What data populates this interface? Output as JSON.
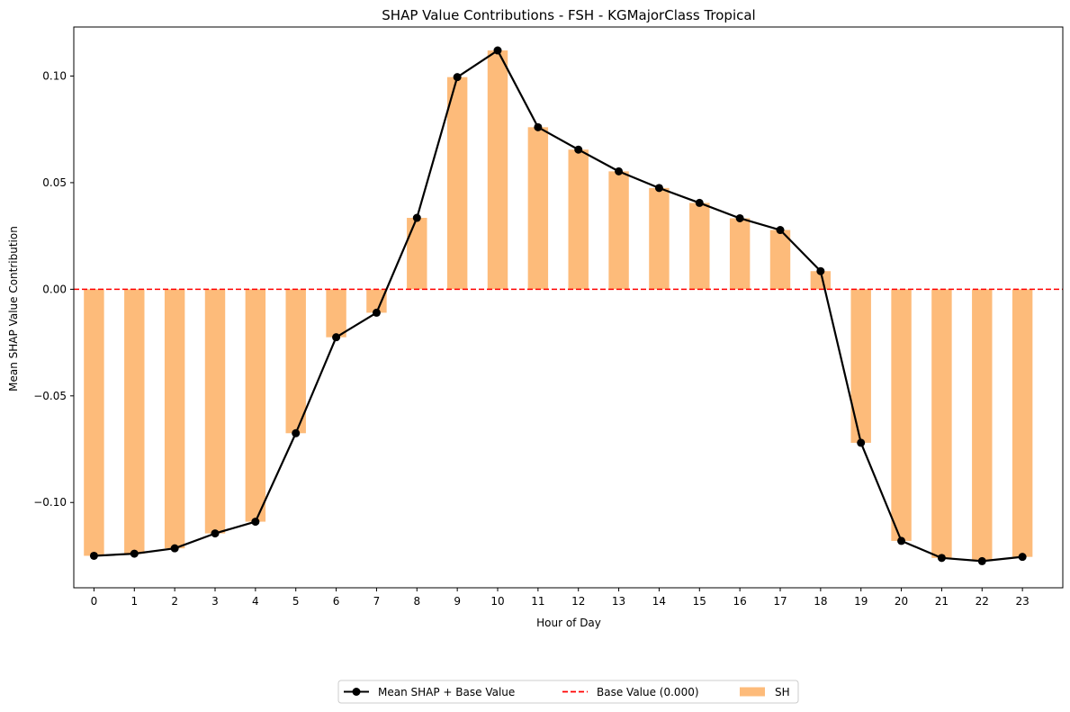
{
  "chart_data": {
    "type": "bar",
    "title": "SHAP Value Contributions - FSH - KGMajorClass Tropical",
    "xlabel": "Hour of Day",
    "ylabel": "Mean SHAP Value Contribution",
    "categories": [
      "0",
      "1",
      "2",
      "3",
      "4",
      "5",
      "6",
      "7",
      "8",
      "9",
      "10",
      "11",
      "12",
      "13",
      "14",
      "15",
      "16",
      "17",
      "18",
      "19",
      "20",
      "21",
      "22",
      "23"
    ],
    "ylim": [
      -0.14,
      0.123
    ],
    "yticks": [
      -0.1,
      -0.05,
      0.0,
      0.05,
      0.1
    ],
    "ytick_labels": [
      "−0.10",
      "−0.05",
      "0.00",
      "0.05",
      "0.10"
    ],
    "series": [
      {
        "name": "SH",
        "kind": "bar",
        "color": "#fdbb7a",
        "values": [
          -0.125,
          -0.124,
          -0.1215,
          -0.1145,
          -0.109,
          -0.0675,
          -0.0225,
          -0.011,
          0.0335,
          0.0995,
          0.112,
          0.076,
          0.0655,
          0.0553,
          0.0475,
          0.0405,
          0.0333,
          0.0278,
          0.0085,
          -0.072,
          -0.118,
          -0.126,
          -0.1275,
          -0.1255
        ]
      },
      {
        "name": "Mean SHAP + Base Value",
        "kind": "line",
        "color": "#000000",
        "values": [
          -0.125,
          -0.124,
          -0.1215,
          -0.1145,
          -0.109,
          -0.0675,
          -0.0225,
          -0.011,
          0.0335,
          0.0995,
          0.112,
          0.076,
          0.0655,
          0.0553,
          0.0475,
          0.0405,
          0.0333,
          0.0278,
          0.0085,
          -0.072,
          -0.118,
          -0.126,
          -0.1275,
          -0.1255
        ]
      }
    ],
    "base_line": {
      "name": "Base Value (0.000)",
      "value": 0.0,
      "color": "#ff0000",
      "style": "dashed"
    },
    "legend": {
      "placement": "bottom-center",
      "entries": [
        "Mean SHAP + Base Value",
        "Base Value (0.000)",
        "SH"
      ]
    },
    "grid": false
  }
}
